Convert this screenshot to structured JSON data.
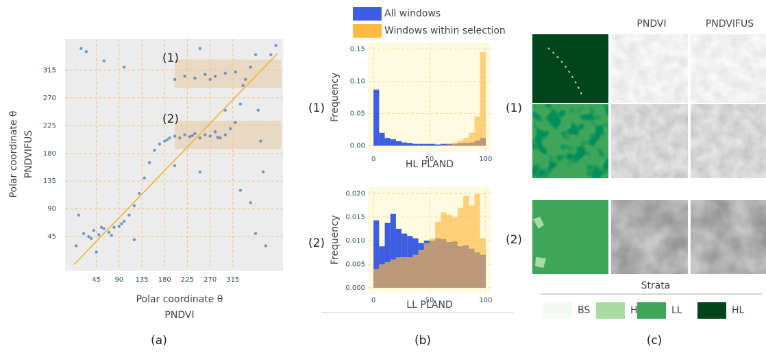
{
  "chart_data": [
    {
      "type": "scatter",
      "xlabel": [
        "Polar coordinate θ",
        "PNDVI"
      ],
      "ylabel": [
        "Polar coordinate θ",
        "PNDVIFUS"
      ],
      "color": "#3a7ab8",
      "line_color": "#f5b335",
      "grid": true,
      "xlim": [
        -10,
        410
      ],
      "ylim": [
        -7,
        362
      ],
      "xticks": [
        45,
        90,
        135,
        180,
        225,
        270,
        315
      ],
      "yticks": [
        45,
        90,
        135,
        180,
        225,
        270,
        315
      ],
      "selections": [
        {
          "label": "(1)",
          "xlim": [
            200,
            410
          ],
          "ylim": [
            286,
            332
          ]
        },
        {
          "label": "(2)",
          "xlim": [
            200,
            410
          ],
          "ylim": [
            187,
            233
          ]
        }
      ],
      "x": [
        20,
        30,
        40,
        50,
        60,
        70,
        80,
        90,
        100,
        110,
        120,
        130,
        140,
        150,
        160,
        170,
        180,
        190,
        200,
        210,
        220,
        230,
        240,
        250,
        260,
        270,
        280,
        290,
        300,
        310,
        320,
        330,
        340,
        350,
        360,
        200,
        220,
        240,
        260,
        280,
        300,
        320,
        270,
        15,
        25,
        60,
        100,
        250,
        350,
        360,
        370,
        375,
        380,
        365,
        10,
        5,
        45,
        200,
        250,
        120,
        300,
        330,
        390,
        400,
        35,
        55,
        75,
        95,
        185,
        235,
        285,
        335
      ],
      "y": [
        50,
        45,
        55,
        48,
        58,
        52,
        60,
        62,
        70,
        80,
        95,
        115,
        140,
        165,
        185,
        195,
        200,
        205,
        208,
        205,
        210,
        207,
        212,
        205,
        210,
        208,
        215,
        205,
        210,
        220,
        230,
        260,
        300,
        320,
        340,
        300,
        305,
        302,
        308,
        305,
        310,
        312,
        300,
        350,
        345,
        330,
        320,
        350,
        100,
        50,
        200,
        150,
        30,
        250,
        80,
        30,
        20,
        160,
        150,
        40,
        250,
        120,
        340,
        355,
        42,
        60,
        47,
        66,
        202,
        209,
        206,
        290
      ]
    },
    {
      "type": "histogram",
      "xlabel": "HL PLAND",
      "ylabel": "Frequency",
      "grid": true,
      "xlim": [
        -5,
        105
      ],
      "ylim": [
        -0.01,
        0.16
      ],
      "xticks": [
        0,
        50,
        100
      ],
      "yticks": [
        {
          "value": 0,
          "label": "0.00"
        },
        0.05,
        {
          "value": 0.1,
          "label": "0.10"
        },
        0.15
      ],
      "bins": [
        0,
        5,
        10,
        15,
        20,
        25,
        30,
        35,
        40,
        45,
        50,
        55,
        60,
        65,
        70,
        75,
        80,
        85,
        90,
        95,
        100
      ],
      "series": [
        {
          "name": "All windows",
          "color": "#3d5ee0",
          "values": [
            0.087,
            0.02,
            0.012,
            0.01,
            0.007,
            0.005,
            0.004,
            0.003,
            0.003,
            0.003,
            0.003,
            0.002,
            0.003,
            0.003,
            0.003,
            0.004,
            0.004,
            0.005,
            0.008,
            0.012
          ]
        },
        {
          "name": "Windows within selection",
          "color": "#ffb940",
          "values": [
            0,
            0,
            0,
            0,
            0,
            0,
            0,
            0,
            0,
            0,
            0,
            0,
            0.001,
            0.002,
            0.005,
            0.008,
            0.012,
            0.02,
            0.045,
            0.145
          ]
        }
      ]
    },
    {
      "type": "histogram",
      "xlabel": "LL PLAND",
      "ylabel": "Frequency",
      "grid": true,
      "xlim": [
        -5,
        105
      ],
      "ylim": [
        -0.0012,
        0.0215
      ],
      "xticks": [
        0,
        50,
        100
      ],
      "yticks": [
        {
          "value": 0,
          "label": "0.000"
        },
        0.005,
        {
          "value": 0.01,
          "label": "0.010"
        },
        0.015,
        {
          "value": 0.02,
          "label": "0.020"
        }
      ],
      "bins": [
        0,
        5,
        10,
        15,
        20,
        25,
        30,
        35,
        40,
        45,
        50,
        55,
        60,
        65,
        70,
        75,
        80,
        85,
        90,
        95,
        100
      ],
      "series": [
        {
          "color": "#3d5ee0",
          "values": [
            0.0143,
            0.0088,
            0.0138,
            0.0157,
            0.0125,
            0.0115,
            0.011,
            0.0105,
            0.0095,
            0.01,
            0.01,
            0.0105,
            0.0103,
            0.0097,
            0.0098,
            0.0088,
            0.009,
            0.0083,
            0.0075,
            0.007
          ]
        },
        {
          "color": "#ffb940",
          "values": [
            0.004,
            0.005,
            0.0055,
            0.006,
            0.0065,
            0.0065,
            0.0065,
            0.007,
            0.008,
            0.0095,
            0.0105,
            0.014,
            0.016,
            0.0155,
            0.015,
            0.017,
            0.0195,
            0.0175,
            0.02,
            0.0105
          ]
        }
      ]
    }
  ],
  "panel_labels": [
    "(a)",
    "(b)",
    "(c)"
  ],
  "row_labels_b": [
    "(1)",
    "(2)"
  ],
  "panel_c": {
    "columns": [
      "PNDVI",
      "PNDVIFUS"
    ],
    "rows": [
      "(1)",
      "(2)"
    ],
    "legend_title": "Strata",
    "strata": [
      {
        "label": "BS",
        "color": "#f3faf3"
      },
      {
        "label": "H",
        "color": "#a8dca0"
      },
      {
        "label": "LL",
        "color": "#3ea55a"
      },
      {
        "label": "HL",
        "color": "#00441b"
      }
    ]
  }
}
